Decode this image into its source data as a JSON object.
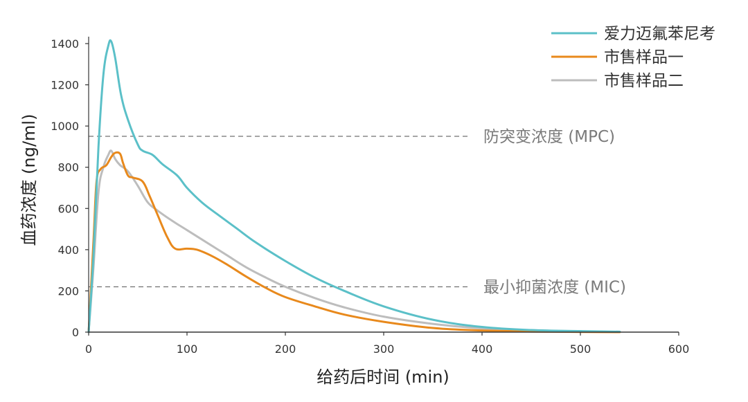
{
  "chart_data": {
    "type": "line",
    "xlabel": "给药后时间 (min)",
    "ylabel": "血药浓度 (ng/ml)",
    "xlim": [
      0,
      600
    ],
    "ylim": [
      0,
      1400
    ],
    "xticks": [
      "0",
      "100",
      "200",
      "300",
      "400",
      "500",
      "600"
    ],
    "yticks": [
      "0",
      "200",
      "400",
      "600",
      "800",
      "1000",
      "1200",
      "1400"
    ],
    "grid": false,
    "legend_position": "top-right",
    "series": [
      {
        "name": "爱力迈氟苯尼考",
        "color": "#5bc0c8",
        "x": [
          0,
          5,
          10,
          15,
          20,
          23,
          27,
          33,
          40,
          50,
          55,
          65,
          75,
          90,
          100,
          115,
          130,
          150,
          170,
          200,
          230,
          260,
          300,
          350,
          400,
          450,
          500,
          540
        ],
        "y": [
          0,
          380,
          900,
          1250,
          1390,
          1410,
          1330,
          1150,
          1030,
          910,
          880,
          860,
          815,
          760,
          700,
          630,
          575,
          505,
          435,
          345,
          265,
          200,
          125,
          60,
          25,
          10,
          5,
          2
        ]
      },
      {
        "name": "市售样品一",
        "color": "#e8891c",
        "x": [
          0,
          5,
          8,
          12,
          18,
          23,
          27,
          32,
          35,
          40,
          45,
          55,
          62,
          70,
          80,
          88,
          100,
          110,
          125,
          140,
          160,
          180,
          200,
          230,
          260,
          300,
          350,
          400,
          450,
          500,
          540
        ],
        "y": [
          0,
          450,
          730,
          790,
          810,
          850,
          870,
          865,
          820,
          760,
          750,
          730,
          660,
          570,
          460,
          405,
          405,
          400,
          370,
          330,
          270,
          215,
          170,
          125,
          85,
          50,
          20,
          8,
          3,
          1,
          0
        ]
      },
      {
        "name": "市售样品二",
        "color": "#bdbdbd",
        "x": [
          0,
          5,
          10,
          15,
          20,
          23,
          27,
          32,
          40,
          50,
          60,
          70,
          85,
          100,
          120,
          140,
          160,
          180,
          200,
          230,
          260,
          300,
          350,
          400,
          450,
          500,
          540
        ],
        "y": [
          0,
          320,
          680,
          800,
          860,
          880,
          840,
          810,
          780,
          710,
          630,
          590,
          540,
          495,
          435,
          375,
          315,
          265,
          220,
          165,
          120,
          75,
          40,
          18,
          8,
          3,
          1
        ]
      }
    ],
    "annotations": [
      {
        "label": "防突变浓度 (MPC)",
        "y": 950
      },
      {
        "label": "最小抑菌浓度 (MIC)",
        "y": 220
      }
    ]
  }
}
